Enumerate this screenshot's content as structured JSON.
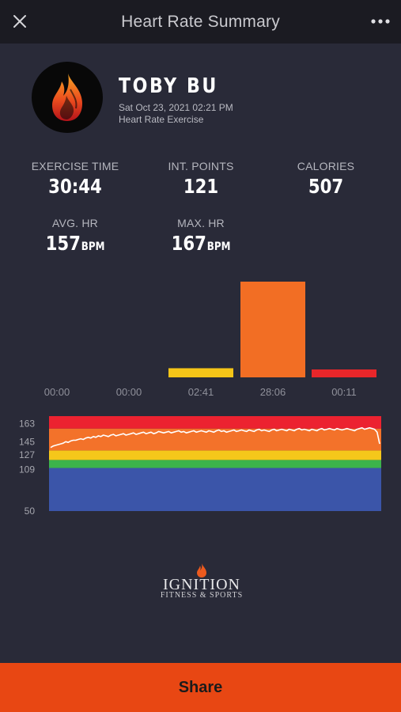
{
  "header": {
    "title": "Heart Rate Summary",
    "close_icon": "close-icon",
    "more_icon": "more-icon"
  },
  "profile": {
    "name": "TOBY BU",
    "datetime": "Sat Oct 23, 2021 02:21 PM",
    "activity": "Heart Rate Exercise",
    "avatar_icon": "flame-icon"
  },
  "stats": {
    "exercise_time": {
      "label": "EXERCISE TIME",
      "value": "30:44"
    },
    "int_points": {
      "label": "INT. POINTS",
      "value": "121"
    },
    "calories": {
      "label": "CALORIES",
      "value": "507"
    },
    "avg_hr": {
      "label": "AVG. HR",
      "value": "157",
      "unit": "BPM"
    },
    "max_hr": {
      "label": "MAX. HR",
      "value": "167",
      "unit": "BPM"
    }
  },
  "chart_data": [
    {
      "type": "bar",
      "categories": [
        "00:00",
        "00:00",
        "02:41",
        "28:06",
        "00:11"
      ],
      "values": [
        0,
        0,
        161,
        1686,
        11
      ],
      "colors": [
        "#3a55a8",
        "#3bb34a",
        "#f5c518",
        "#f26e24",
        "#e8262a"
      ],
      "title": "",
      "xlabel": "",
      "ylabel": ""
    },
    {
      "type": "line",
      "title": "",
      "zones": [
        {
          "from": 50,
          "to": 109,
          "color": "#3b55a9"
        },
        {
          "from": 109,
          "to": 120,
          "color": "#3cb44b"
        },
        {
          "from": 120,
          "to": 133,
          "color": "#f5c71a"
        },
        {
          "from": 133,
          "to": 163,
          "color": "#f3722a"
        },
        {
          "from": 163,
          "to": 180,
          "color": "#ec2230"
        }
      ],
      "y_labels": [
        "163",
        "145",
        "127",
        "109",
        "50"
      ],
      "ylim": [
        50,
        180
      ],
      "series": [
        {
          "values": [
            137,
            139,
            140,
            141,
            142,
            143,
            145,
            144,
            146,
            147,
            147,
            148,
            149,
            148,
            150,
            151,
            150,
            152,
            151,
            153,
            152,
            154,
            153,
            152,
            154,
            155,
            153,
            154,
            155,
            156,
            154,
            155,
            156,
            157,
            155,
            156,
            157,
            158,
            156,
            157,
            158,
            156,
            157,
            159,
            158,
            157,
            158,
            159,
            157,
            158,
            159,
            160,
            158,
            159,
            157,
            158,
            159,
            160,
            158,
            159,
            160,
            159,
            158,
            160,
            159,
            158,
            160,
            161,
            159,
            160,
            158,
            159,
            160,
            161,
            159,
            160,
            161,
            160,
            159,
            161,
            160,
            159,
            161,
            162,
            160,
            161,
            160,
            159,
            161,
            162,
            160,
            161,
            162,
            161,
            160,
            162,
            161,
            160,
            162,
            163,
            161,
            162,
            161,
            160,
            162,
            161,
            160,
            162,
            163,
            161,
            162,
            163,
            162,
            161,
            163,
            162,
            161,
            162,
            163,
            162,
            161,
            160,
            162,
            163,
            164,
            162,
            163,
            164,
            163,
            162,
            158,
            142
          ]
        }
      ]
    }
  ],
  "logo": {
    "brand": "IGNITION",
    "tagline": "FITNESS & SPORTS",
    "icon": "flame-icon"
  },
  "share": {
    "label": "Share"
  },
  "colors": {
    "background": "#292a38",
    "topbar": "#1b1b22",
    "share": "#e84713"
  }
}
